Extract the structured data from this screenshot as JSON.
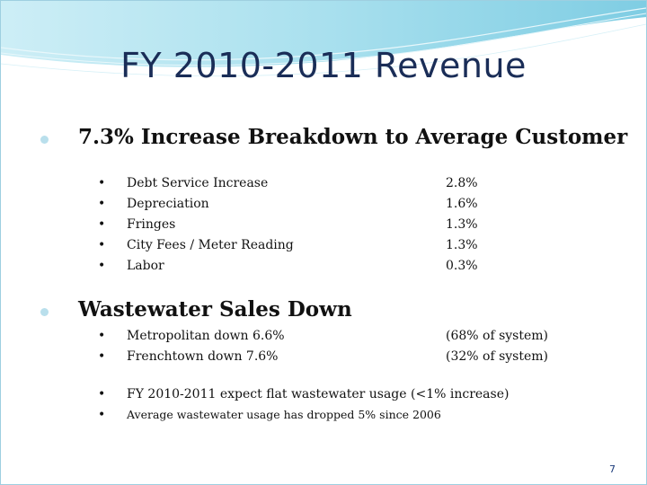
{
  "title": "FY 2010-2011 Revenue",
  "section1": {
    "heading": "7.3% Increase Breakdown to Average Customer",
    "items": [
      {
        "label": "Debt Service Increase",
        "value": "2.8%"
      },
      {
        "label": "Depreciation",
        "value": "1.6%"
      },
      {
        "label": "Fringes",
        "value": "1.3%"
      },
      {
        "label": "City Fees / Meter  Reading",
        "value": "1.3%"
      },
      {
        "label": "Labor",
        "value": "0.3%"
      }
    ]
  },
  "section2": {
    "heading": "Wastewater Sales Down",
    "items": [
      {
        "label": "Metropolitan down 6.6%",
        "value": "(68% of system)"
      },
      {
        "label": "Frenchtown down 7.6%",
        "value": "(32% of system)"
      }
    ],
    "notes": [
      "FY 2010-2011 expect flat wastewater usage (<1% increase)",
      "Average wastewater usage has dropped 5% since 2006"
    ]
  },
  "page_number": "7",
  "colors": {
    "title": "#1a2d57",
    "bullet": "#b9dfec",
    "wave": "#8fd3e8",
    "text": "#111111"
  }
}
